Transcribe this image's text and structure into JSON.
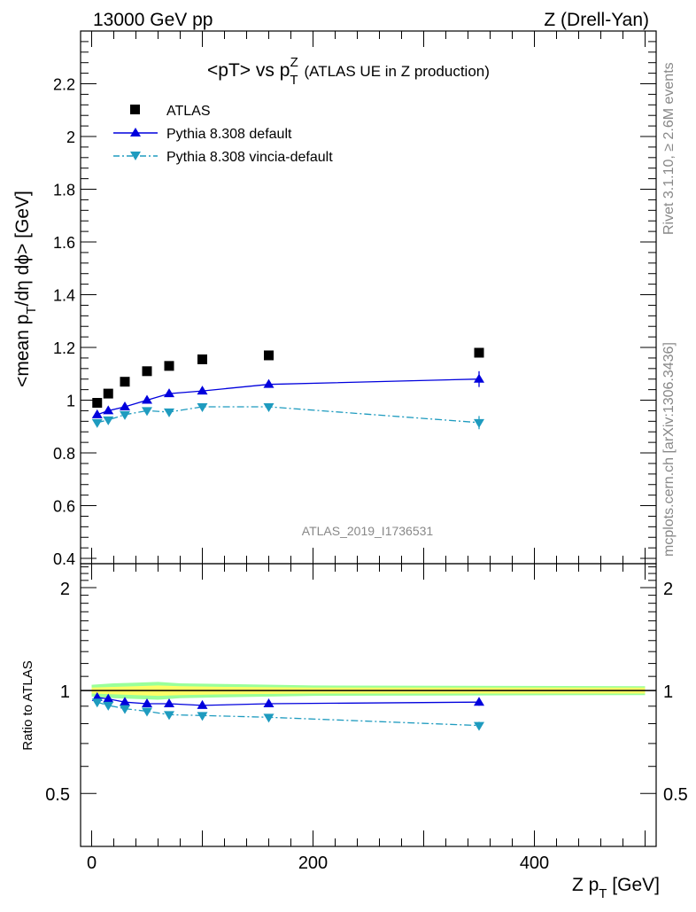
{
  "header": {
    "left": "13000 GeV pp",
    "right": "Z (Drell-Yan)"
  },
  "side": {
    "rivet": "Rivet 3.1.10, ≥ 2.6M events",
    "mcplots": "mcplots.cern.ch [arXiv:1306.3436]"
  },
  "title": {
    "main": "<pT> vs p",
    "sub": "T",
    "sup": "Z",
    "rest": " (ATLAS UE in Z production)"
  },
  "analysis_label": "ATLAS_2019_I1736531",
  "colors": {
    "data": "#000000",
    "pythia_default": "#0000dd",
    "vincia": "#1e9bbf",
    "band_inner": "#ffff66",
    "band_outer": "#99ff99"
  },
  "chart_data": [
    {
      "type": "line",
      "panel": "main",
      "ylabel_main": "<mean p",
      "ylabel_sub": "T",
      "ylabel_rest": "/dη dϕ> [GeV]",
      "ylim": [
        0.38,
        2.4
      ],
      "xlim": [
        -10,
        510
      ],
      "yticks": [
        0.4,
        0.6,
        0.8,
        1.0,
        1.2,
        1.4,
        1.6,
        1.8,
        2.0,
        2.2
      ],
      "ytick_labels": [
        "0.4",
        "0.6",
        "0.8",
        "1",
        "1.2",
        "1.4",
        "1.6",
        "1.8",
        "2",
        "2.2"
      ],
      "legend_position": "top-left",
      "series": [
        {
          "name": "ATLAS",
          "style": "data",
          "x": [
            5,
            15,
            30,
            50,
            70,
            100,
            160,
            350
          ],
          "y": [
            0.99,
            1.025,
            1.07,
            1.11,
            1.13,
            1.155,
            1.17,
            1.18
          ]
        },
        {
          "name": "Pythia 8.308 default",
          "style": "default",
          "x": [
            5,
            15,
            30,
            50,
            70,
            100,
            160,
            350
          ],
          "y": [
            0.945,
            0.96,
            0.975,
            1.0,
            1.025,
            1.035,
            1.06,
            1.08
          ],
          "yerr": [
            0.005,
            0.005,
            0.005,
            0.005,
            0.005,
            0.005,
            0.008,
            0.03
          ]
        },
        {
          "name": "Pythia 8.308 vincia-default",
          "style": "vincia",
          "x": [
            5,
            15,
            30,
            50,
            70,
            100,
            160,
            350
          ],
          "y": [
            0.915,
            0.925,
            0.945,
            0.96,
            0.955,
            0.975,
            0.975,
            0.915
          ],
          "yerr": [
            0.005,
            0.005,
            0.005,
            0.005,
            0.005,
            0.005,
            0.008,
            0.025
          ]
        }
      ]
    },
    {
      "type": "line",
      "panel": "ratio",
      "ylabel": "Ratio to ATLAS",
      "xlabel_main": "Z p",
      "xlabel_sub": "T",
      "xlabel_rest": " [GeV]",
      "ylim": [
        0.35,
        2.35
      ],
      "xlim": [
        -10,
        510
      ],
      "yticks": [
        0.5,
        1,
        2
      ],
      "ytick_labels": [
        "0.5",
        "1",
        "2"
      ],
      "xticks": [
        0,
        200,
        400
      ],
      "xtick_labels": [
        "0",
        "200",
        "400"
      ],
      "band": {
        "x": [
          0,
          20,
          40,
          60,
          80,
          120,
          200,
          500
        ],
        "inner": [
          0.02,
          0.025,
          0.03,
          0.035,
          0.03,
          0.025,
          0.02,
          0.02
        ],
        "outer": [
          0.04,
          0.05,
          0.055,
          0.06,
          0.05,
          0.045,
          0.035,
          0.03
        ]
      },
      "series": [
        {
          "name": "Pythia 8.308 default",
          "style": "default",
          "x": [
            5,
            15,
            30,
            50,
            70,
            100,
            160,
            350
          ],
          "y": [
            0.955,
            0.945,
            0.925,
            0.915,
            0.915,
            0.905,
            0.915,
            0.925
          ],
          "yerr": [
            0.005,
            0.005,
            0.005,
            0.005,
            0.005,
            0.005,
            0.008,
            0.022
          ]
        },
        {
          "name": "Pythia 8.308 vincia-default",
          "style": "vincia",
          "x": [
            5,
            15,
            30,
            50,
            70,
            100,
            160,
            350
          ],
          "y": [
            0.925,
            0.905,
            0.885,
            0.87,
            0.85,
            0.845,
            0.835,
            0.79
          ],
          "yerr": [
            0.005,
            0.005,
            0.005,
            0.005,
            0.005,
            0.005,
            0.008,
            0.02
          ]
        }
      ]
    }
  ]
}
